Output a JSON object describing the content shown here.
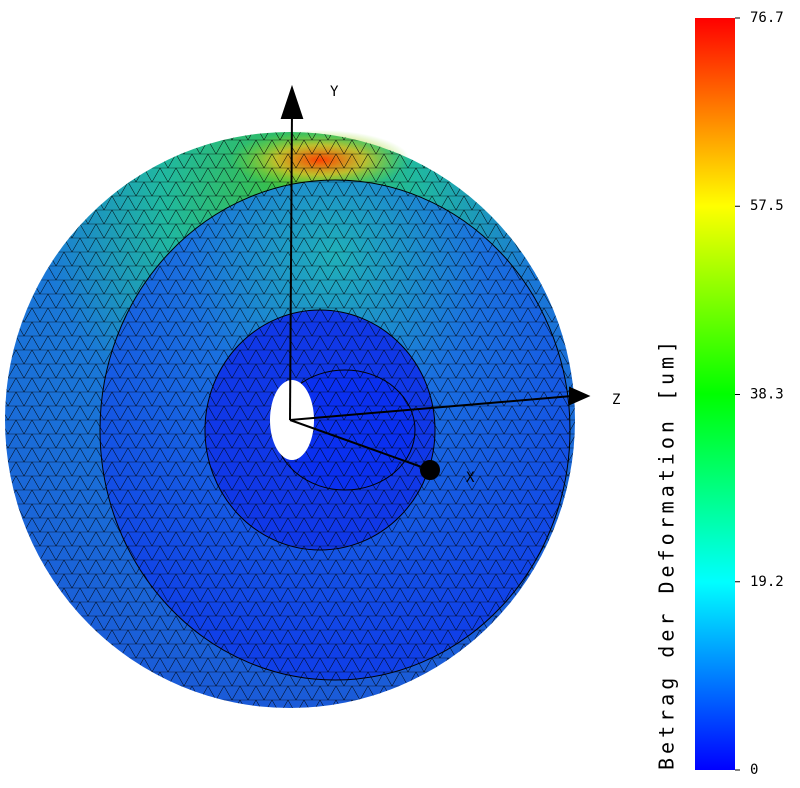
{
  "colorbar": {
    "label": "Betrag der Deformation [um]",
    "min": 0,
    "max": 76.7,
    "ticks": [
      0,
      19.2,
      38.3,
      57.5,
      76.7
    ]
  },
  "axes": {
    "labels": [
      "Y",
      "Z",
      "X"
    ]
  }
}
